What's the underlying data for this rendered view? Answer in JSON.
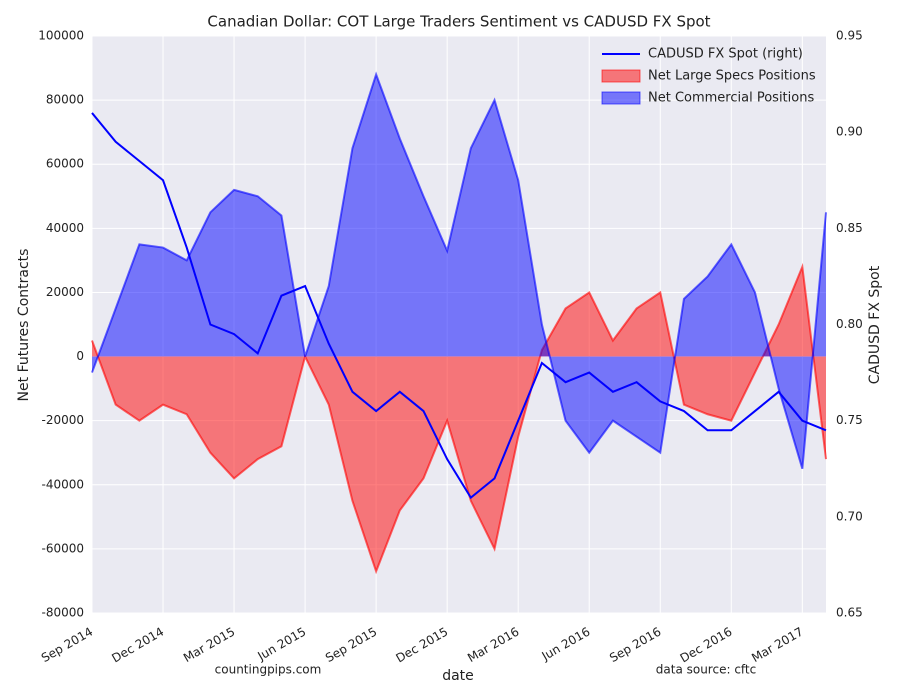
{
  "chart_data": {
    "type": "line",
    "title": "Canadian Dollar: COT Large Traders Sentiment vs CADUSD FX Spot",
    "xlabel": "date",
    "ylabel": "Net Futures Contracts",
    "y2label": "CADUSD FX Spot",
    "footer_left": "countingpips.com",
    "footer_right": "data source: cftc",
    "x": [
      "2014-09",
      "2014-10",
      "2014-11",
      "2014-12",
      "2015-01",
      "2015-02",
      "2015-03",
      "2015-04",
      "2015-05",
      "2015-06",
      "2015-07",
      "2015-08",
      "2015-09",
      "2015-10",
      "2015-11",
      "2015-12",
      "2016-01",
      "2016-02",
      "2016-03",
      "2016-04",
      "2016-05",
      "2016-06",
      "2016-07",
      "2016-08",
      "2016-09",
      "2016-10",
      "2016-11",
      "2016-12",
      "2017-01",
      "2017-02",
      "2017-03",
      "2017-04"
    ],
    "xlim": [
      "2014-09",
      "2017-04"
    ],
    "xticks": [
      {
        "value": "2014-09",
        "label": "Sep 2014"
      },
      {
        "value": "2014-12",
        "label": "Dec 2014"
      },
      {
        "value": "2015-03",
        "label": "Mar 2015"
      },
      {
        "value": "2015-06",
        "label": "Jun 2015"
      },
      {
        "value": "2015-09",
        "label": "Sep 2015"
      },
      {
        "value": "2015-12",
        "label": "Dec 2015"
      },
      {
        "value": "2016-03",
        "label": "Mar 2016"
      },
      {
        "value": "2016-06",
        "label": "Jun 2016"
      },
      {
        "value": "2016-09",
        "label": "Sep 2016"
      },
      {
        "value": "2016-12",
        "label": "Dec 2016"
      },
      {
        "value": "2017-03",
        "label": "Mar 2017"
      }
    ],
    "ylim": [
      -80000,
      100000
    ],
    "yticks": [
      -80000,
      -60000,
      -40000,
      -20000,
      0,
      20000,
      40000,
      60000,
      80000,
      100000
    ],
    "y2lim": [
      0.65,
      0.95
    ],
    "y2ticks": [
      0.65,
      {
        "value": 0.7,
        "label": "0.70"
      },
      0.75,
      {
        "value": 0.8,
        "label": "0.80"
      },
      0.85,
      {
        "value": 0.9,
        "label": "0.90"
      },
      0.95
    ],
    "grid": true,
    "legend": "upper right",
    "series": [
      {
        "name": "CADUSD FX Spot (right)",
        "kind": "line",
        "axis": "y2",
        "color": "#0000ff",
        "values": [
          0.91,
          0.895,
          0.885,
          0.875,
          0.84,
          0.8,
          0.795,
          0.785,
          0.815,
          0.82,
          0.79,
          0.765,
          0.755,
          0.765,
          0.755,
          0.73,
          0.71,
          0.72,
          0.75,
          0.78,
          0.77,
          0.775,
          0.765,
          0.77,
          0.76,
          0.755,
          0.745,
          0.745,
          0.755,
          0.765,
          0.75,
          0.745
        ]
      },
      {
        "name": "Net Large Specs Positions",
        "kind": "area",
        "color": "#ff0000",
        "values": [
          5000,
          -15000,
          -20000,
          -15000,
          -18000,
          -30000,
          -38000,
          -32000,
          -28000,
          0,
          -15000,
          -45000,
          -67000,
          -48000,
          -38000,
          -20000,
          -45000,
          -60000,
          -25000,
          2000,
          15000,
          20000,
          5000,
          15000,
          20000,
          -15000,
          -18000,
          -20000,
          -5000,
          10000,
          28000,
          -32000
        ]
      },
      {
        "name": "Net Commercial Positions",
        "kind": "area",
        "color": "#0000ff",
        "values": [
          -5000,
          15000,
          35000,
          34000,
          30000,
          45000,
          52000,
          50000,
          44000,
          0,
          22000,
          65000,
          88000,
          68000,
          50000,
          33000,
          65000,
          80000,
          55000,
          10000,
          -20000,
          -30000,
          -20000,
          -25000,
          -30000,
          18000,
          25000,
          35000,
          20000,
          -10000,
          -35000,
          45000
        ]
      }
    ]
  }
}
